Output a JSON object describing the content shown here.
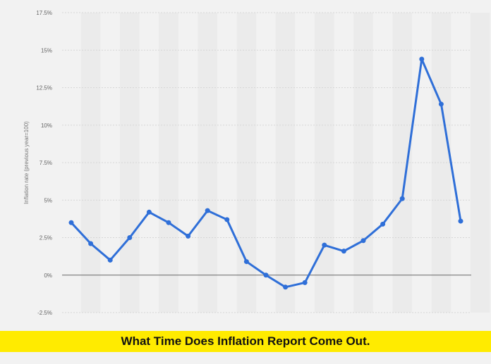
{
  "chart_data": {
    "type": "line",
    "ylabel": "Inflation rate (previous year=100)",
    "y_ticks": [
      "17.5%",
      "15%",
      "12.5%",
      "10%",
      "7.5%",
      "5%",
      "2.5%",
      "0%",
      "-2.5%"
    ],
    "ylim": [
      -2.5,
      17.5
    ],
    "grid": true,
    "series": [
      {
        "values": [
          3.5,
          2.1,
          1.0,
          2.5,
          4.2,
          3.5,
          2.6,
          4.3,
          3.7,
          0.9,
          0.0,
          -0.8,
          -0.5,
          2.0,
          1.6,
          2.3,
          3.4,
          5.1,
          14.4,
          11.4,
          3.6
        ]
      }
    ]
  },
  "colors": {
    "line": "#2f6fd8",
    "band": "#ebebeb",
    "background": "#f2f2f2",
    "zero_line": "#666666",
    "banner": "#ffeb00"
  },
  "banner": {
    "text": "What Time Does Inflation Report Come Out."
  }
}
